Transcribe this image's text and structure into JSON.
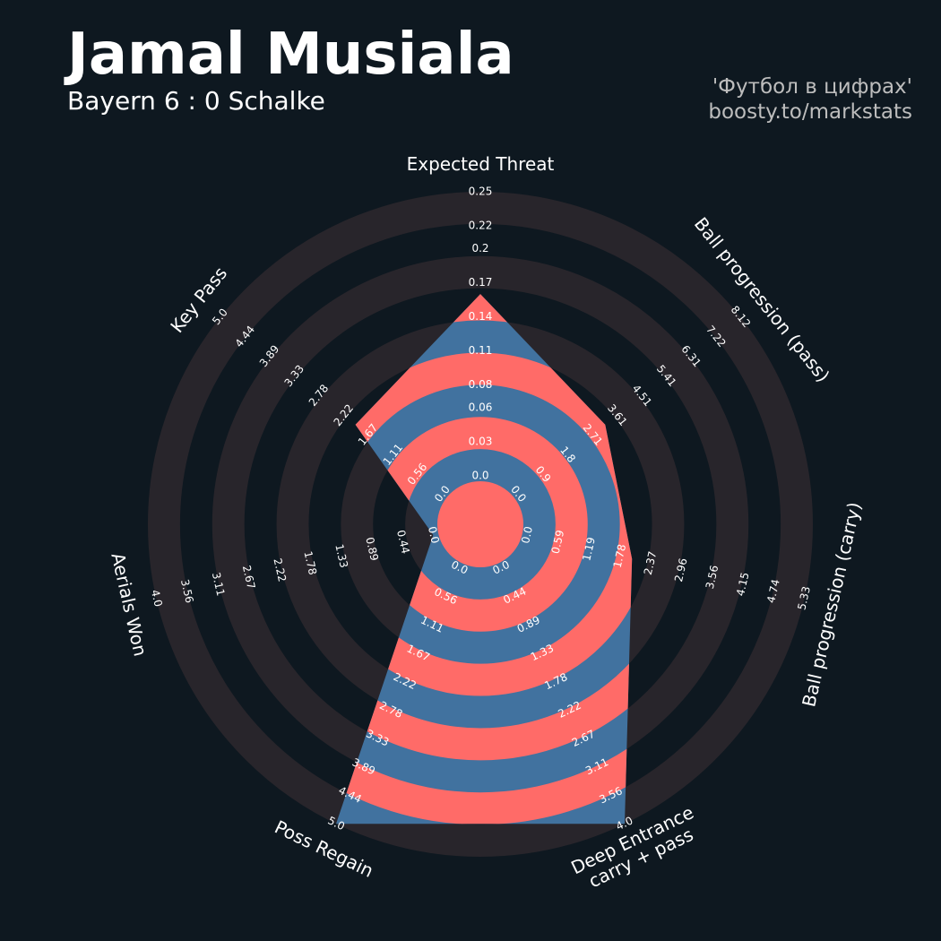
{
  "chart_data": {
    "type": "radar",
    "title": "Jamal Musiala",
    "subtitle": "Bayern 6 : 0 Schalke",
    "annotations": [
      "'Футбол в цифрах'",
      "boosty.to/markstats"
    ],
    "categories": [
      [
        "Expected Threat"
      ],
      [
        "Ball progression (pass)"
      ],
      [
        "Ball progression (carry)"
      ],
      [
        "Deep Entrance",
        "carry + pass"
      ],
      [
        "Poss Regain"
      ],
      [
        "Aerials Won"
      ],
      [
        "Key Pass"
      ]
    ],
    "values": [
      0.16,
      3.18,
      2.01,
      4.0,
      5.0,
      0,
      1.96
    ],
    "lims": [
      [
        0,
        0.25
      ],
      [
        0,
        8.12
      ],
      [
        0,
        5.33
      ],
      [
        0,
        4
      ],
      [
        0,
        5
      ],
      [
        0,
        4
      ],
      [
        0,
        5
      ]
    ],
    "ticks": [
      [
        {
          "value": 0,
          "label": "0.0"
        },
        0.03,
        0.06,
        0.08,
        0.11,
        0.14,
        0.17,
        0.2,
        0.22,
        0.25
      ],
      [
        {
          "value": 0,
          "label": "0.0"
        },
        0.9,
        1.8,
        2.71,
        3.61,
        4.51,
        5.41,
        6.31,
        7.22,
        8.12
      ],
      [
        {
          "value": 0,
          "label": "0.0"
        },
        0.59,
        1.19,
        1.78,
        2.37,
        2.96,
        3.56,
        4.15,
        4.74,
        5.33
      ],
      [
        {
          "value": 0,
          "label": "0.0"
        },
        0.44,
        0.89,
        1.33,
        1.78,
        2.22,
        2.67,
        3.11,
        3.56,
        {
          "value": 4,
          "label": "4.0"
        }
      ],
      [
        {
          "value": 0,
          "label": "0.0"
        },
        0.56,
        1.11,
        1.67,
        2.22,
        2.78,
        3.33,
        3.89,
        4.44,
        {
          "value": 5,
          "label": "5.0"
        }
      ],
      [
        {
          "value": 0,
          "label": "0.0"
        },
        0.44,
        0.89,
        1.33,
        1.78,
        2.22,
        2.67,
        3.11,
        3.56,
        {
          "value": 4,
          "label": "4.0"
        }
      ],
      [
        {
          "value": 0,
          "label": "0.0"
        },
        0.56,
        1.11,
        1.67,
        2.22,
        2.78,
        3.33,
        3.89,
        4.44,
        {
          "value": 5,
          "label": "5.0"
        }
      ]
    ],
    "color": "#41729f",
    "ring_color": "#ff6b68",
    "background_ring_color": "#28252b"
  }
}
